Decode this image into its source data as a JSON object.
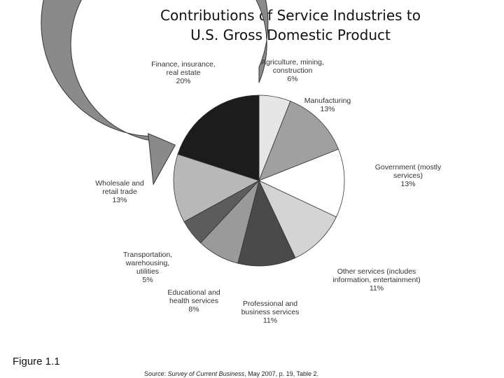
{
  "chart_data": {
    "type": "pie",
    "title_lines": [
      "Contributions of Service Industries to",
      "U.S. Gross Domestic Product"
    ],
    "unit": "%",
    "slices": [
      {
        "label_lines": [
          "Agriculture, mining,",
          "construction"
        ],
        "value": 6,
        "value_label": "6%",
        "color": "#e6e6e6"
      },
      {
        "label_lines": [
          "Manufacturing"
        ],
        "value": 13,
        "value_label": "13%",
        "color": "#a0a0a0"
      },
      {
        "label_lines": [
          "Government (mostly",
          "services)"
        ],
        "value": 13,
        "value_label": "13%",
        "color": "#ffffff"
      },
      {
        "label_lines": [
          "Other services (includes",
          "information, entertainment)"
        ],
        "value": 11,
        "value_label": "11%",
        "color": "#d4d4d4"
      },
      {
        "label_lines": [
          "Professional and",
          "business services"
        ],
        "value": 11,
        "value_label": "11%",
        "color": "#4a4a4a"
      },
      {
        "label_lines": [
          "Educational and",
          "health services"
        ],
        "value": 8,
        "value_label": "8%",
        "color": "#9a9a9a"
      },
      {
        "label_lines": [
          "Transportation,",
          "warehousing,",
          "utilities"
        ],
        "value": 5,
        "value_label": "5%",
        "color": "#5c5c5c"
      },
      {
        "label_lines": [
          "Wholesale and",
          "retail trade"
        ],
        "value": 13,
        "value_label": "13%",
        "color": "#b8b8b8"
      },
      {
        "label_lines": [
          "Finance, insurance,",
          "real estate"
        ],
        "value": 20,
        "value_label": "20%",
        "color": "#1c1c1c"
      }
    ],
    "arrow_color": "#8a8a8a",
    "edge_color": "#333333"
  },
  "figure_label": "Figure 1.1",
  "source": {
    "prefix": "Source: ",
    "publication": "Survey of Current Business",
    "suffix": ", May 2007, p. 19, Table 2."
  }
}
